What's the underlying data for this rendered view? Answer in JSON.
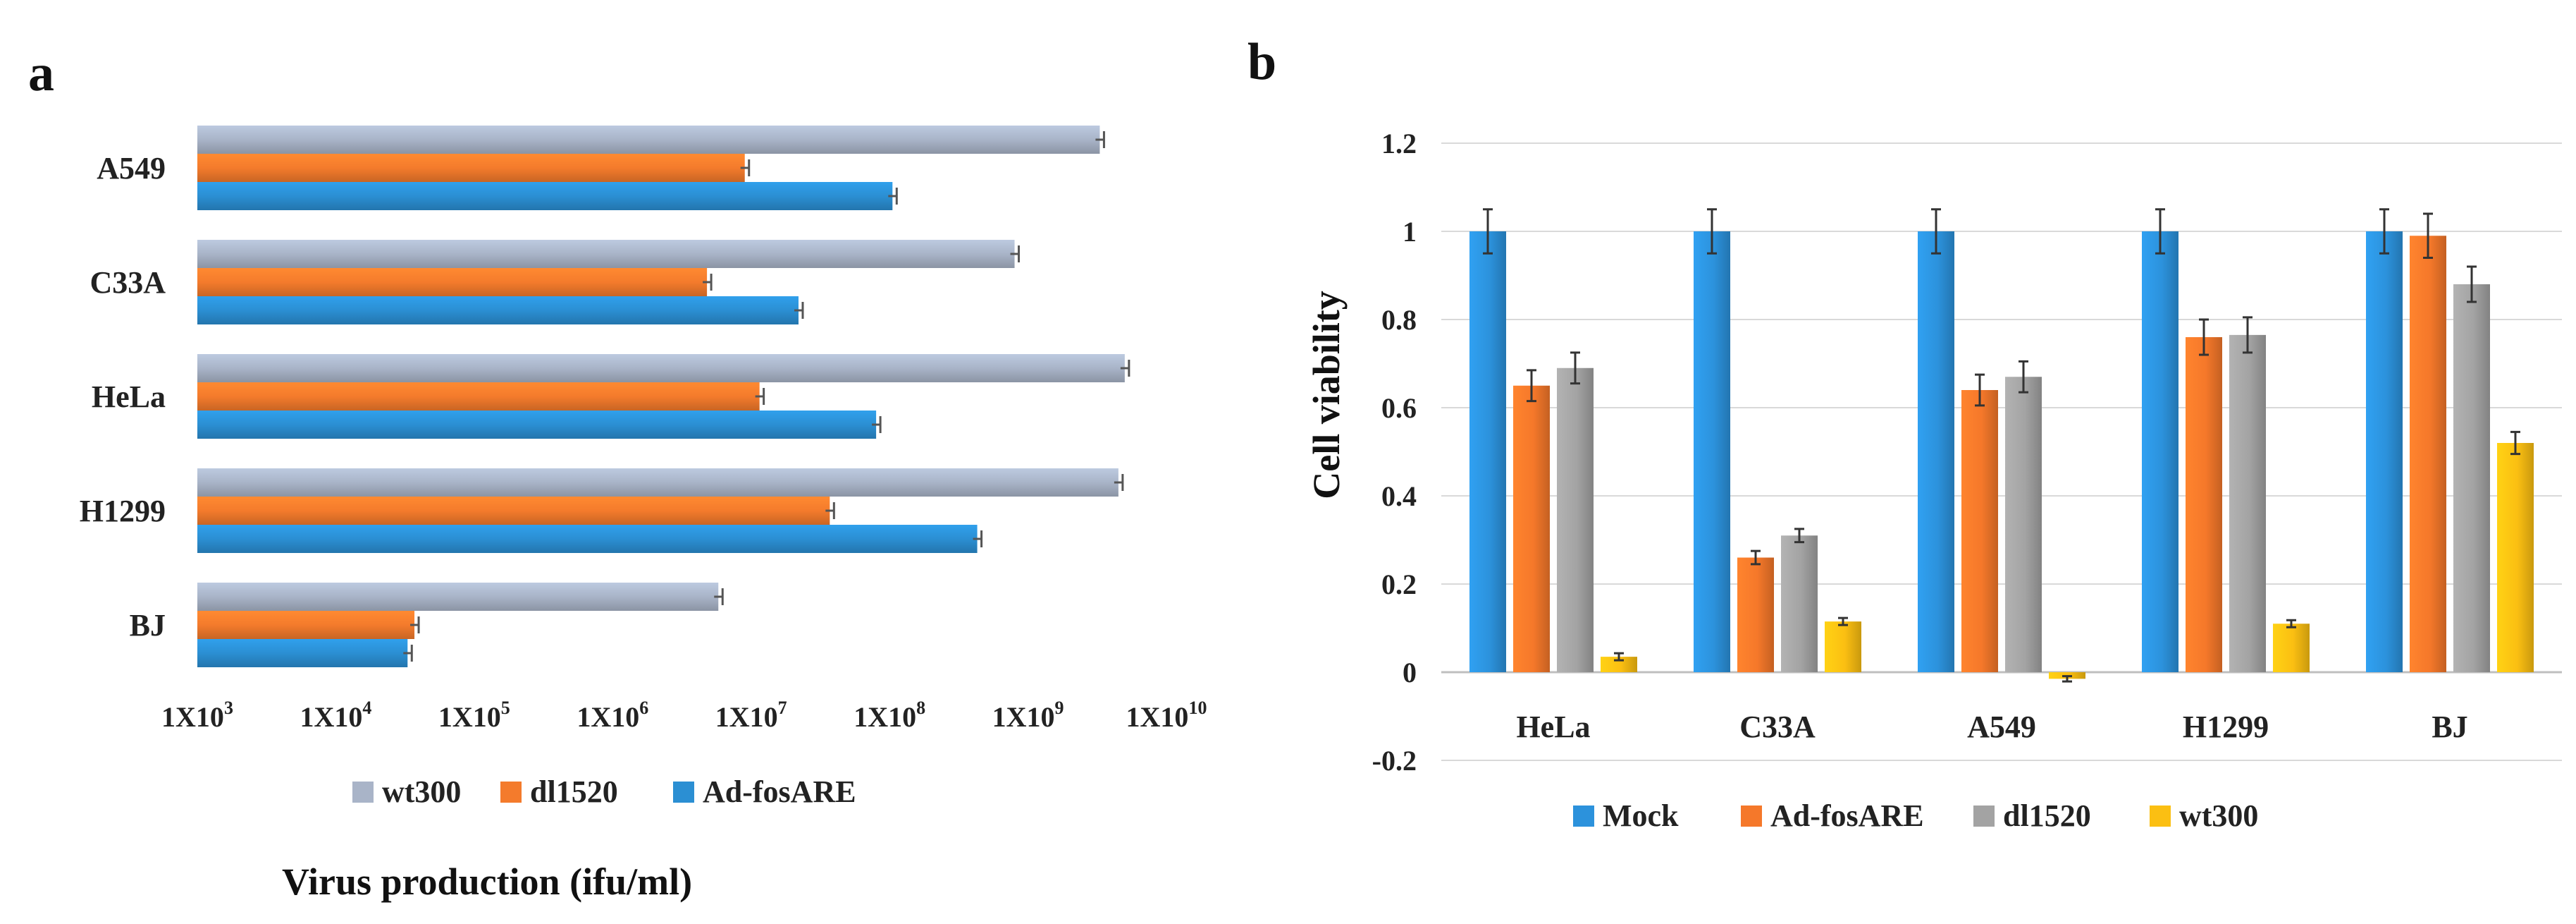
{
  "colors": {
    "wt300_a": "#a9b4c8",
    "dl1520_a": "#f47b2c",
    "adfos_a": "#2b8fd3",
    "mock_b": "#2c92dc",
    "adfos_b": "#f5782a",
    "dl1520_b": "#a3a3a3",
    "wt300_b": "#fbbf12",
    "grid": "#d9d9d9",
    "axis": "#bfbfbf"
  },
  "chart_data": [
    {
      "panel": "a",
      "type": "bar",
      "orientation": "horizontal",
      "xscale": "log10",
      "xlim": [
        1000,
        10000000000
      ],
      "xticks": [
        {
          "base": "1X10",
          "exp": "3"
        },
        {
          "base": "1X10",
          "exp": "4"
        },
        {
          "base": "1X10",
          "exp": "5"
        },
        {
          "base": "1X10",
          "exp": "6"
        },
        {
          "base": "1X10",
          "exp": "7"
        },
        {
          "base": "1X10",
          "exp": "8"
        },
        {
          "base": "1X10",
          "exp": "9"
        },
        {
          "base": "1X10",
          "exp": "10"
        }
      ],
      "categories": [
        "A549",
        "C33A",
        "HeLa",
        "H1299",
        "BJ"
      ],
      "series": [
        {
          "name": "wt300",
          "color_key": "wt300_a",
          "values": [
            3300000000,
            800000000,
            5000000000,
            4500000000,
            5800000
          ]
        },
        {
          "name": "dl1520",
          "color_key": "dl1520_a",
          "values": [
            9000000,
            4800000,
            11500000,
            37000000,
            37000
          ]
        },
        {
          "name": "Ad-fosARE",
          "color_key": "adfos_a",
          "values": [
            105000000,
            22000000,
            80000000,
            430000000,
            33000
          ]
        }
      ],
      "xlabel": "Virus production (ifu/ml)",
      "ylabel": "",
      "legend": [
        "wt300",
        "dl1520",
        "Ad-fosARE"
      ]
    },
    {
      "panel": "b",
      "type": "bar",
      "orientation": "vertical",
      "categories": [
        "HeLa",
        "C33A",
        "A549",
        "H1299",
        "BJ"
      ],
      "ylim": [
        -0.2,
        1.2
      ],
      "yticks": [
        "1.2",
        "1",
        "0.8",
        "0.6",
        "0.4",
        "0.2",
        "0",
        "-0.2"
      ],
      "ytick_values": [
        1.2,
        1.0,
        0.8,
        0.6,
        0.4,
        0.2,
        0,
        -0.2
      ],
      "series": [
        {
          "name": "Mock",
          "color_key": "mock_b",
          "values": [
            1.0,
            1.0,
            1.0,
            1.0,
            1.0
          ],
          "errors": [
            0.05,
            0.05,
            0.05,
            0.05,
            0.05
          ]
        },
        {
          "name": "Ad-fosARE",
          "color_key": "adfos_b",
          "values": [
            0.65,
            0.26,
            0.64,
            0.76,
            0.99
          ],
          "errors": [
            0.035,
            0.015,
            0.035,
            0.04,
            0.05
          ]
        },
        {
          "name": "dl1520",
          "color_key": "dl1520_b",
          "values": [
            0.69,
            0.31,
            0.67,
            0.765,
            0.88
          ],
          "errors": [
            0.035,
            0.015,
            0.035,
            0.04,
            0.04
          ]
        },
        {
          "name": "wt300",
          "color_key": "wt300_b",
          "values": [
            0.035,
            0.115,
            -0.015,
            0.11,
            0.52
          ],
          "errors": [
            0.008,
            0.008,
            0.006,
            0.008,
            0.025
          ]
        }
      ],
      "ylabel": "Cell viability",
      "xlabel": "",
      "grid": true,
      "legend": [
        "Mock",
        "Ad-fosARE",
        "dl1520",
        "wt300"
      ]
    }
  ],
  "panels": {
    "a": "a",
    "b": "b"
  }
}
